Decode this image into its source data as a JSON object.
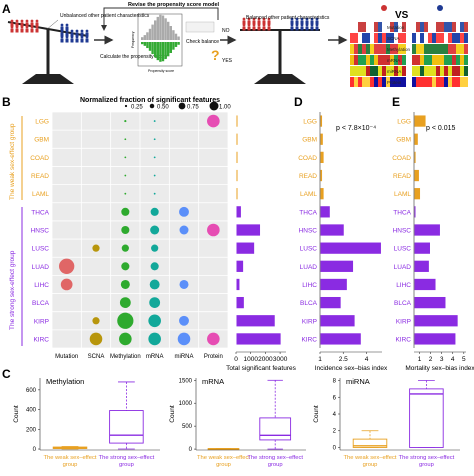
{
  "panel_labels": {
    "a": "A",
    "b": "B",
    "c": "C",
    "d": "D",
    "e": "E"
  },
  "panel_a": {
    "unbalanced_label": "Unbalanced other patient characteristics",
    "revise_label": "Revise the propensity score model",
    "calc_label": "Calculate the propensity score",
    "check_label": "Check balance",
    "no_label": "NO",
    "yes_label": "YES",
    "balanced_label": "Balanced other patient characteristics",
    "hist_xlabel": "Propensity score",
    "hist_ylabel": "Frequency",
    "vs_label": "VS",
    "heatmap_rows": [
      "Mutation",
      "SCNA",
      "Methylation",
      "mRNA",
      "miRNA",
      "Protein"
    ],
    "colors": {
      "female": "#cc3333",
      "male": "#1f3a93",
      "green": "#33aa33",
      "orange": "#e8a020",
      "purple": "#8a2be2"
    }
  },
  "panel_b": {
    "legend_title": "Normalized fraction of significant features",
    "legend_sizes": [
      "0.25",
      "0.50",
      "0.75",
      "1.00"
    ],
    "weak_group_label": "The weak sex-effect group",
    "strong_group_label": "The strong sex-effect group",
    "columns": [
      "Mutation",
      "SCNA",
      "Methylation",
      "mRNA",
      "miRNA",
      "Protein"
    ],
    "weak_cancers": [
      "LGG",
      "GBM",
      "COAD",
      "READ",
      "LAML"
    ],
    "strong_cancers": [
      "THCA",
      "HNSC",
      "LUSC",
      "LUAD",
      "LIHC",
      "BLCA",
      "KIRP",
      "KIRC"
    ],
    "column_colors": [
      "#e06666",
      "#b8960c",
      "#2eaa2e",
      "#12a89a",
      "#5b8ff9",
      "#e64db3"
    ],
    "sizes": [
      [
        0,
        0,
        0.12,
        0.08,
        0,
        0.7
      ],
      [
        0,
        0,
        0.05,
        0.05,
        0,
        0
      ],
      [
        0,
        0,
        0.08,
        0.08,
        0,
        0
      ],
      [
        0,
        0,
        0.05,
        0.05,
        0,
        0
      ],
      [
        0,
        0,
        0.08,
        0.05,
        0,
        0
      ],
      [
        0,
        0,
        0.45,
        0.45,
        0.55,
        0
      ],
      [
        0,
        0,
        0.45,
        0.5,
        0.5,
        0.7
      ],
      [
        0,
        0.4,
        0.4,
        0.4,
        0,
        0
      ],
      [
        0.85,
        0,
        0.45,
        0.45,
        0,
        0
      ],
      [
        0.65,
        0,
        0.5,
        0.55,
        0.5,
        0
      ],
      [
        0,
        0,
        0.6,
        0.6,
        0,
        0
      ],
      [
        0,
        0.4,
        0.9,
        0.7,
        0.55,
        0
      ],
      [
        0,
        0.7,
        0.7,
        0.7,
        0.7,
        0.7
      ]
    ]
  },
  "chart_data": [
    {
      "type": "bar",
      "panel": "B-right",
      "categories": [
        "LGG",
        "GBM",
        "COAD",
        "READ",
        "LAML",
        "THCA",
        "HNSC",
        "LUSC",
        "LUAD",
        "LIHC",
        "BLCA",
        "KIRP",
        "KIRC"
      ],
      "values": [
        60,
        10,
        15,
        10,
        20,
        300,
        1600,
        1200,
        450,
        200,
        500,
        2600,
        3000
      ],
      "xlabel": "Total significant features",
      "ticks": [
        0,
        1000,
        2000,
        3000
      ],
      "xlim": [
        0,
        3400
      ]
    },
    {
      "type": "bar",
      "panel": "D",
      "categories": [
        "LGG",
        "GBM",
        "COAD",
        "READ",
        "LAML",
        "THCA",
        "HNSC",
        "LUSC",
        "LUAD",
        "LIHC",
        "BLCA",
        "KIRP",
        "KIRC"
      ],
      "values": [
        1.1,
        1.15,
        1.2,
        1.1,
        1.2,
        1.6,
        2.5,
        4.9,
        3.1,
        2.7,
        2.3,
        3.2,
        3.6
      ],
      "annotation": "p < 7.8×10⁻⁴",
      "xlabel": "Incidence sex–bias index",
      "ticks": [
        1.0,
        2.5,
        4.0
      ],
      "xlim": [
        1.0,
        5.0
      ]
    },
    {
      "type": "bar",
      "panel": "E",
      "categories": [
        "LGG",
        "GBM",
        "COAD",
        "READ",
        "LAML",
        "THCA",
        "HNSC",
        "LUSC",
        "LUAD",
        "LIHC",
        "BLCA",
        "KIRP",
        "KIRC"
      ],
      "values": [
        1.5,
        0.8,
        0.6,
        0.9,
        1.0,
        0.4,
        2.8,
        1.9,
        1.8,
        2.4,
        3.3,
        4.4,
        4.2
      ],
      "annotation": "p < 0.015",
      "xlabel": "Mortality sex–bias index",
      "ticks": [
        1,
        2,
        3,
        4,
        5
      ],
      "xlim": [
        0.5,
        5.2
      ]
    },
    {
      "type": "box",
      "panel": "C",
      "title": "Methylation",
      "ylabel": "Count",
      "categories": [
        "The weak sex–effect group",
        "The strong sex–effect group"
      ],
      "boxes": [
        {
          "min": 0,
          "q1": 5,
          "median": 10,
          "q3": 20,
          "max": 25
        },
        {
          "min": 0,
          "q1": 60,
          "median": 140,
          "q3": 390,
          "max": 680
        }
      ],
      "ticks": [
        0,
        200,
        400,
        600
      ],
      "ylim": [
        -10,
        720
      ]
    },
    {
      "type": "box",
      "panel": "C",
      "title": "mRNA",
      "ylabel": "Count",
      "categories": [
        "The weak sex–effect group",
        "The strong sex–effect group"
      ],
      "boxes": [
        {
          "min": 0,
          "q1": 2,
          "median": 5,
          "q3": 10,
          "max": 15
        },
        {
          "min": 0,
          "q1": 200,
          "median": 300,
          "q3": 680,
          "max": 1500
        }
      ],
      "ticks": [
        0,
        500,
        1000,
        1500
      ],
      "ylim": [
        -20,
        1550
      ]
    },
    {
      "type": "box",
      "panel": "C",
      "title": "miRNA",
      "ylabel": "Count",
      "categories": [
        "The weak sex–effect group",
        "The strong sex–effect group"
      ],
      "boxes": [
        {
          "min": 0,
          "q1": 0,
          "median": 0.2,
          "q3": 1,
          "max": 2
        },
        {
          "min": 0,
          "q1": 0,
          "median": 6.4,
          "q3": 7,
          "max": 8
        }
      ],
      "ticks": [
        0,
        2,
        4,
        6,
        8
      ],
      "ylim": [
        -0.3,
        8.3
      ]
    }
  ]
}
